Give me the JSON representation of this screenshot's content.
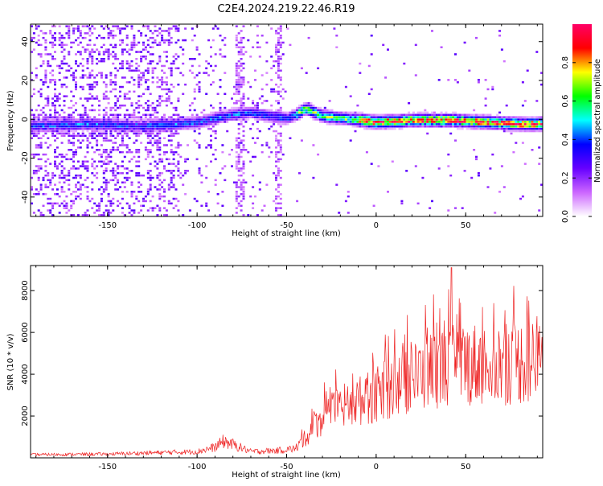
{
  "title": "C2E4.2024.219.22.46.R19",
  "chart_data": [
    {
      "type": "heatmap",
      "xlabel": "Height of straight line (km)",
      "ylabel": "Frequency (Hz)",
      "xlim": [
        -193,
        93
      ],
      "ylim": [
        -50,
        49
      ],
      "x_ticks": [
        -150,
        -100,
        -50,
        0,
        50
      ],
      "y_ticks": [
        -40,
        -20,
        0,
        20,
        40
      ],
      "colorbar": {
        "label": "Normalized spectral amplitude",
        "range": [
          0,
          1
        ],
        "ticks": [
          "0.0",
          "0.2",
          "0.4",
          "0.6",
          "0.8"
        ],
        "colors": [
          "#ffffff",
          "#cc66ff",
          "#6600ff",
          "#0000ff",
          "#00ffff",
          "#00ff00",
          "#ffff00",
          "#ff0000",
          "#ff0066"
        ]
      },
      "ridge": {
        "x": [
          -193,
          -160,
          -130,
          -110,
          -100,
          -90,
          -80,
          -70,
          -60,
          -50,
          -45,
          -40,
          -35,
          -30,
          -20,
          -10,
          0,
          20,
          40,
          60,
          80,
          93
        ],
        "y": [
          -3,
          -2,
          -3,
          -2,
          -1,
          1,
          3,
          4,
          2,
          1,
          3,
          6,
          4,
          2,
          1,
          0,
          -1,
          0,
          0,
          -1,
          -2,
          -2
        ]
      }
    },
    {
      "type": "line",
      "xlabel": "Height of straight line (km)",
      "ylabel": "SNR (10 * v/v)",
      "xlim": [
        -193,
        93
      ],
      "ylim": [
        0,
        9200
      ],
      "x_ticks": [
        -150,
        -100,
        -50,
        0,
        50
      ],
      "y_ticks": [
        2000,
        4000,
        6000,
        8000
      ],
      "color": "#ee2222",
      "trend": {
        "x": [
          -193,
          -150,
          -100,
          -90,
          -85,
          -70,
          -55,
          -45,
          -40,
          -35,
          -30,
          -20,
          -10,
          0,
          10,
          20,
          30,
          40,
          50,
          60,
          70,
          80,
          93
        ],
        "y": [
          150,
          180,
          300,
          500,
          800,
          300,
          350,
          450,
          900,
          1500,
          1900,
          2400,
          2700,
          3000,
          3400,
          3800,
          4200,
          4400,
          4500,
          4500,
          4500,
          4600,
          4600
        ]
      },
      "peak": {
        "x": 42,
        "y": 9100
      }
    }
  ]
}
